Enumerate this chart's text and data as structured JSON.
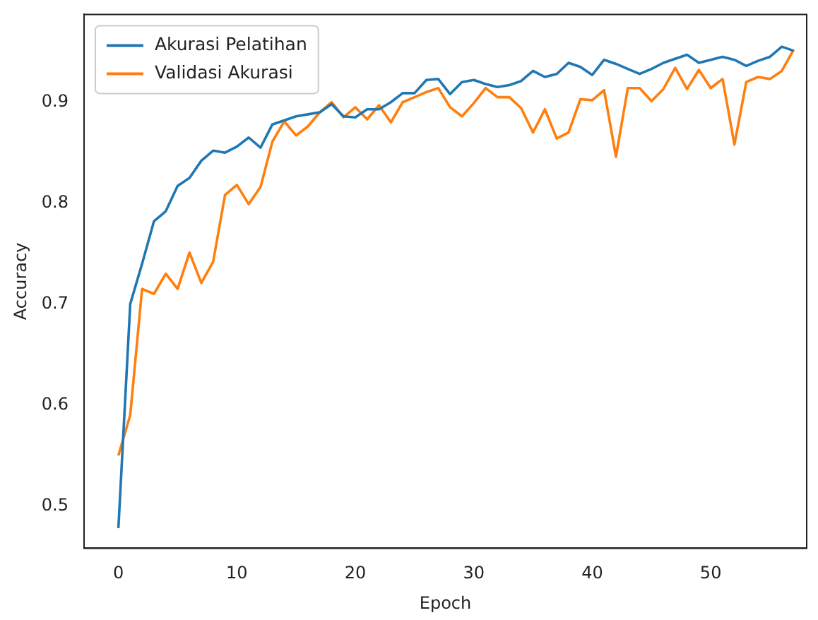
{
  "chart_data": {
    "type": "line",
    "xlabel": "Epoch",
    "ylabel": "Accuracy",
    "legend": "top left",
    "grid": false,
    "marker": "none",
    "line_style": "solid",
    "x": [
      0,
      1,
      2,
      3,
      4,
      5,
      6,
      7,
      8,
      9,
      10,
      11,
      12,
      13,
      14,
      15,
      16,
      17,
      18,
      19,
      20,
      21,
      22,
      23,
      24,
      25,
      26,
      27,
      28,
      29,
      30,
      31,
      32,
      33,
      34,
      35,
      36,
      37,
      38,
      39,
      40,
      41,
      42,
      43,
      44,
      45,
      46,
      47,
      48,
      49,
      50,
      51,
      52,
      53,
      54,
      55,
      56,
      57
    ],
    "xlim": [
      -2.9,
      58.1
    ],
    "xticks": [
      0,
      10,
      20,
      30,
      40,
      50
    ],
    "ylim": [
      0.458,
      0.987
    ],
    "yticks": [
      0.5,
      0.6,
      0.7,
      0.8,
      0.9
    ],
    "series": [
      {
        "name": "Akurasi Pelatihan",
        "color": "#1f77b4",
        "values": [
          0.478,
          0.7,
          0.74,
          0.782,
          0.792,
          0.817,
          0.825,
          0.842,
          0.852,
          0.85,
          0.856,
          0.865,
          0.855,
          0.878,
          0.882,
          0.886,
          0.888,
          0.89,
          0.898,
          0.886,
          0.885,
          0.893,
          0.893,
          0.9,
          0.909,
          0.909,
          0.922,
          0.923,
          0.908,
          0.92,
          0.922,
          0.918,
          0.915,
          0.917,
          0.921,
          0.931,
          0.925,
          0.928,
          0.939,
          0.935,
          0.927,
          0.942,
          0.938,
          0.933,
          0.928,
          0.933,
          0.939,
          0.943,
          0.947,
          0.939,
          0.942,
          0.945,
          0.942,
          0.936,
          0.941,
          0.945,
          0.955,
          0.951
        ]
      },
      {
        "name": "Validasi Akurasi",
        "color": "#ff7f0e",
        "values": [
          0.55,
          0.59,
          0.715,
          0.71,
          0.73,
          0.715,
          0.751,
          0.721,
          0.742,
          0.808,
          0.818,
          0.799,
          0.816,
          0.861,
          0.881,
          0.867,
          0.876,
          0.89,
          0.9,
          0.885,
          0.895,
          0.883,
          0.897,
          0.88,
          0.9,
          0.905,
          0.91,
          0.914,
          0.895,
          0.886,
          0.899,
          0.914,
          0.905,
          0.905,
          0.894,
          0.87,
          0.893,
          0.864,
          0.87,
          0.903,
          0.902,
          0.912,
          0.846,
          0.914,
          0.914,
          0.901,
          0.913,
          0.934,
          0.913,
          0.932,
          0.914,
          0.923,
          0.858,
          0.92,
          0.925,
          0.923,
          0.931,
          0.952
        ]
      }
    ]
  }
}
